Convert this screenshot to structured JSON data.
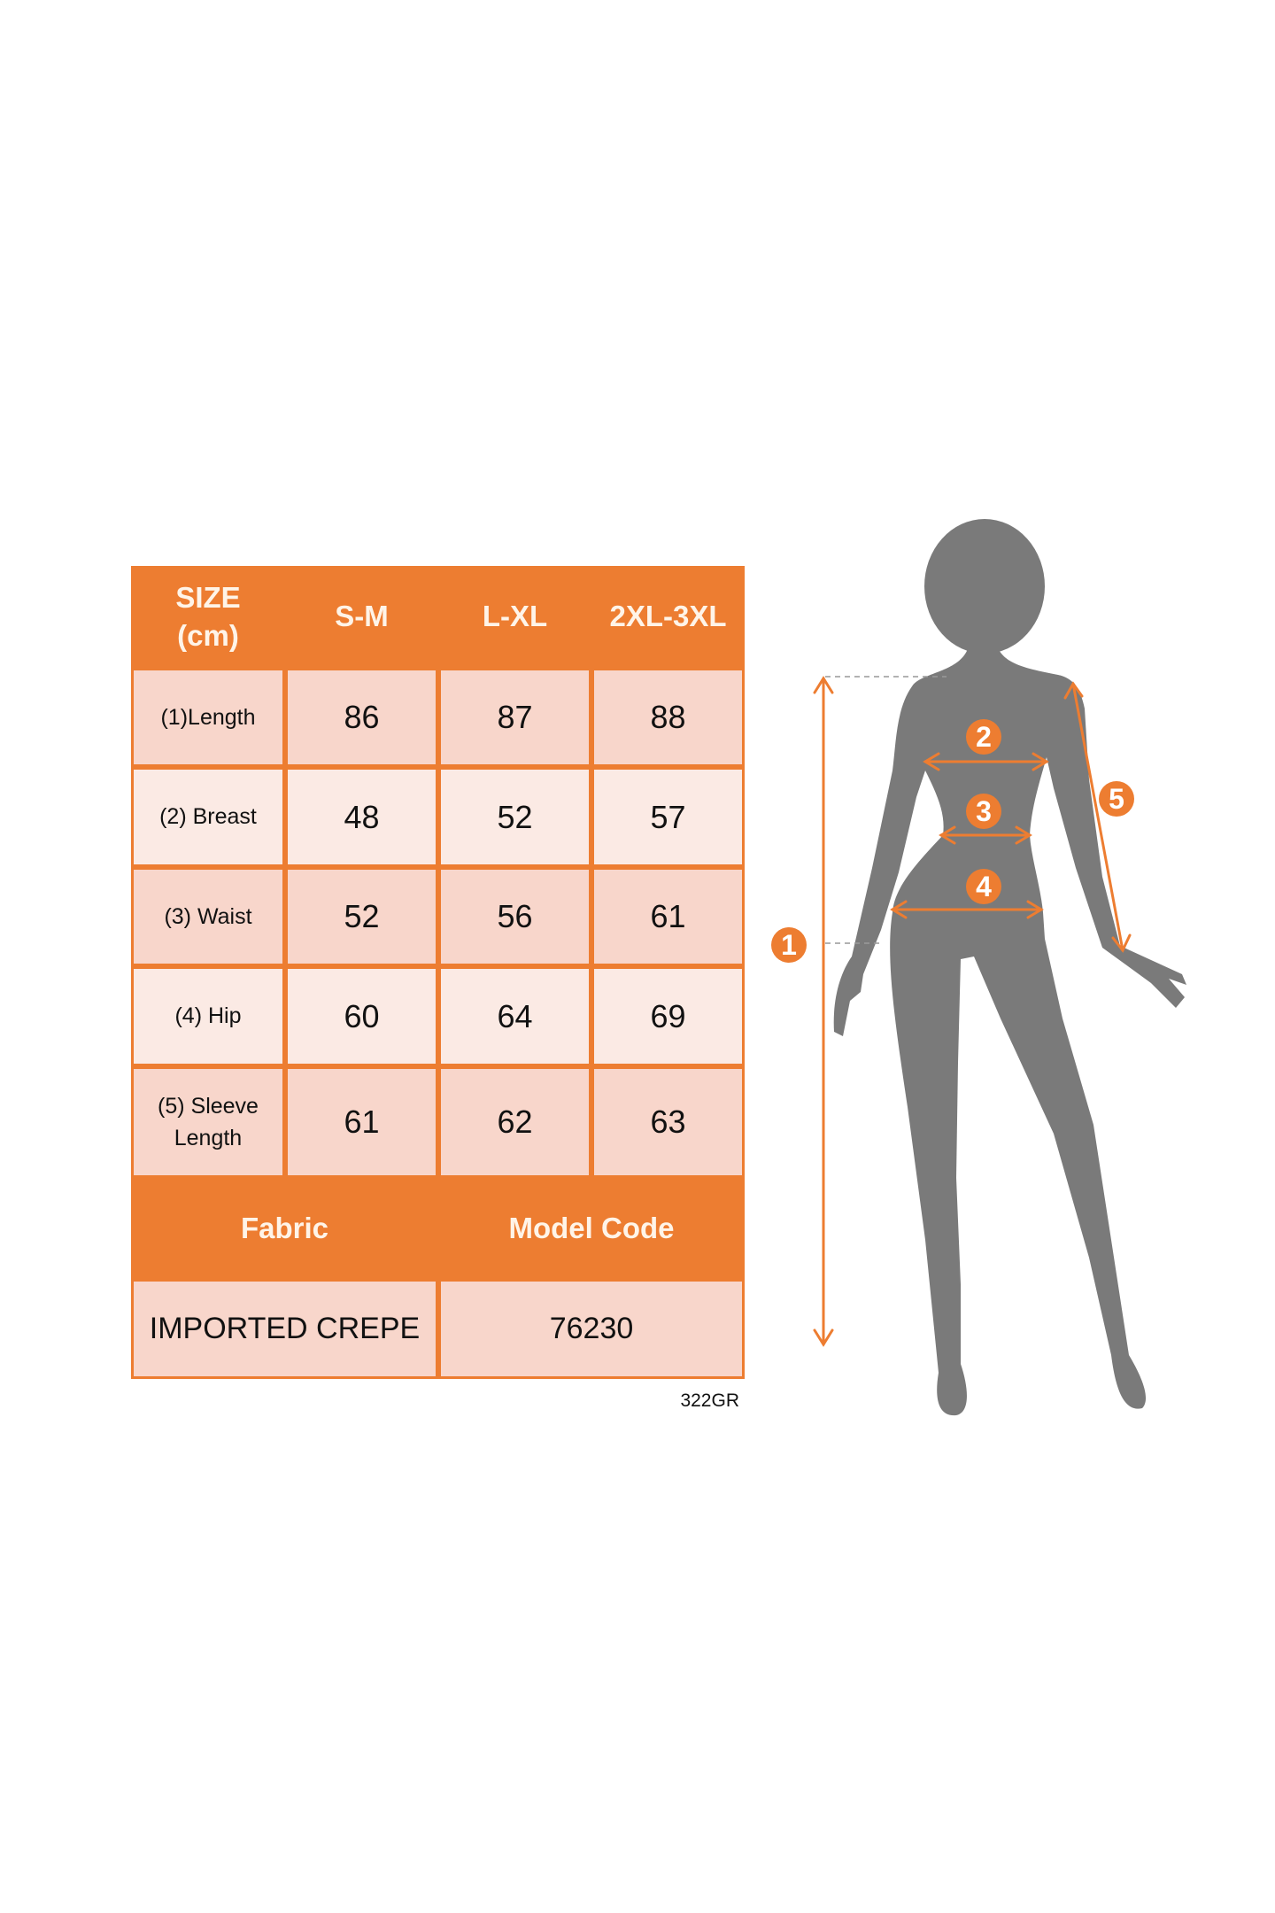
{
  "table": {
    "header": [
      "SIZE\n(cm)",
      "S-M",
      "L-XL",
      "2XL-3XL"
    ],
    "rows": [
      {
        "label": "(1)Length",
        "values": [
          "86",
          "87",
          "88"
        ]
      },
      {
        "label": "(2) Breast",
        "values": [
          "48",
          "52",
          "57"
        ]
      },
      {
        "label": "(3) Waist",
        "values": [
          "52",
          "56",
          "61"
        ]
      },
      {
        "label": "(4) Hip",
        "values": [
          "60",
          "64",
          "69"
        ]
      },
      {
        "label": "(5) Sleeve\nLength",
        "values": [
          "61",
          "62",
          "63"
        ]
      }
    ],
    "footer_header": [
      "Fabric",
      "Model Code"
    ],
    "footer_values": [
      "IMPORTED CREPE",
      "76230"
    ]
  },
  "code_tag": "322GR",
  "figure": {
    "markers": [
      "1",
      "2",
      "3",
      "4",
      "5"
    ],
    "colors": {
      "accent": "#ED7D31",
      "silhouette": "#7A7A7A",
      "cell_dark": "#F8D6CB",
      "cell_light": "#FBEAE4"
    }
  }
}
